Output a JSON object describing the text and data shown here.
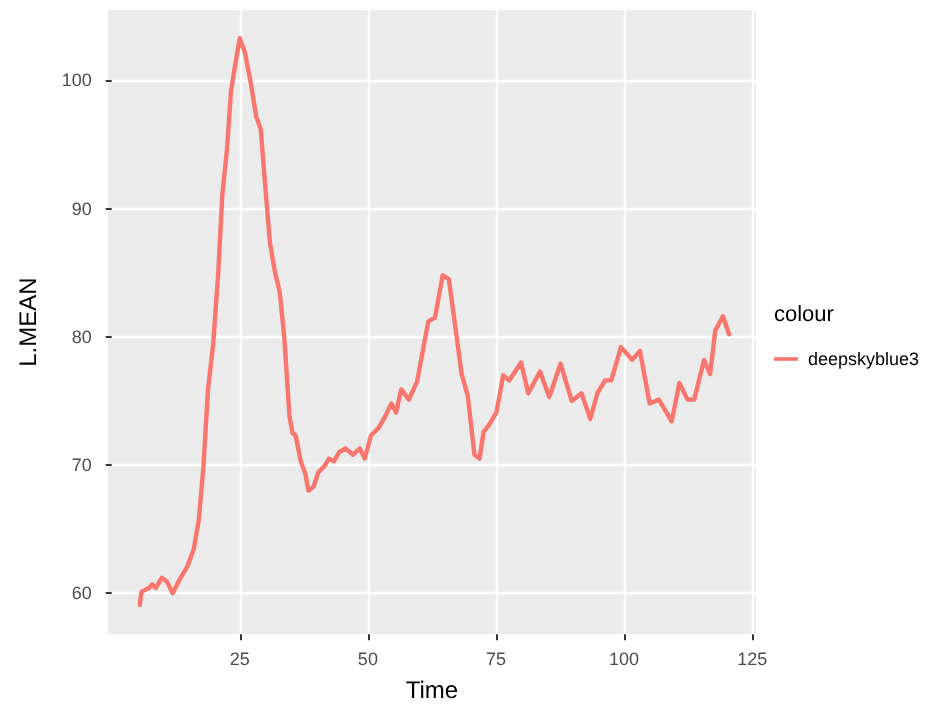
{
  "chart_data": {
    "type": "line",
    "xlabel": "Time",
    "ylabel": "L.MEAN",
    "legend_title": "colour",
    "legend": "right",
    "grid": true,
    "marker": "none",
    "line_style": "solid",
    "xlim": [
      -0.75,
      125.75
    ],
    "xticks": [
      25,
      50,
      75,
      100,
      125
    ],
    "ylim": [
      56.8,
      105.5
    ],
    "yticks": [
      60,
      70,
      80,
      90,
      100
    ],
    "series": [
      {
        "name": "deepskyblue3",
        "color": "#f8766d",
        "x": [
          5.5,
          5.8,
          7.3,
          7.9,
          8.6,
          9.8,
          10.8,
          11.9,
          13.3,
          14.8,
          16.0,
          17.0,
          17.9,
          18.8,
          19.8,
          20.8,
          21.6,
          22.5,
          23.3,
          24.1,
          25.0,
          26.0,
          27.2,
          28.2,
          29.1,
          29.9,
          30.9,
          31.9,
          32.8,
          33.7,
          34.7,
          35.3,
          35.9,
          36.9,
          37.8,
          38.4,
          39.4,
          40.3,
          41.5,
          42.4,
          43.4,
          44.4,
          45.6,
          47.1,
          48.4,
          49.4,
          50.6,
          52.1,
          53.4,
          54.6,
          55.5,
          56.5,
          58.0,
          59.6,
          61.8,
          63.1,
          64.6,
          65.8,
          67.0,
          68.3,
          69.5,
          70.8,
          71.8,
          72.6,
          73.6,
          75.1,
          76.4,
          77.6,
          79.9,
          81.3,
          83.6,
          85.4,
          87.6,
          89.8,
          91.7,
          93.4,
          94.8,
          96.3,
          97.5,
          99.4,
          101.6,
          103.1,
          105.0,
          106.8,
          109.3,
          110.8,
          112.4,
          113.7,
          115.6,
          116.8,
          117.8,
          119.3,
          120.5
        ],
        "values": [
          59.1,
          60.1,
          60.4,
          60.7,
          60.4,
          61.2,
          60.9,
          60.0,
          61.1,
          62.1,
          63.4,
          65.7,
          69.8,
          75.9,
          79.4,
          85.0,
          91.1,
          94.6,
          99.2,
          101.2,
          103.3,
          102.2,
          99.7,
          97.2,
          96.2,
          92.1,
          87.3,
          85.0,
          83.5,
          79.9,
          73.8,
          72.5,
          72.3,
          70.3,
          69.3,
          68.0,
          68.3,
          69.4,
          69.9,
          70.5,
          70.3,
          71.0,
          71.3,
          70.8,
          71.3,
          70.5,
          72.3,
          72.9,
          73.8,
          74.8,
          74.1,
          75.9,
          75.1,
          76.5,
          81.2,
          81.5,
          84.8,
          84.5,
          81.0,
          77.1,
          75.4,
          70.8,
          70.5,
          72.6,
          73.1,
          74.1,
          77.0,
          76.6,
          78.0,
          75.6,
          77.3,
          75.3,
          77.9,
          75.0,
          75.6,
          73.6,
          75.6,
          76.6,
          76.6,
          79.2,
          78.2,
          78.9,
          74.8,
          75.1,
          73.4,
          76.4,
          75.1,
          75.1,
          78.2,
          77.1,
          80.5,
          81.6,
          80.2
        ]
      }
    ]
  }
}
